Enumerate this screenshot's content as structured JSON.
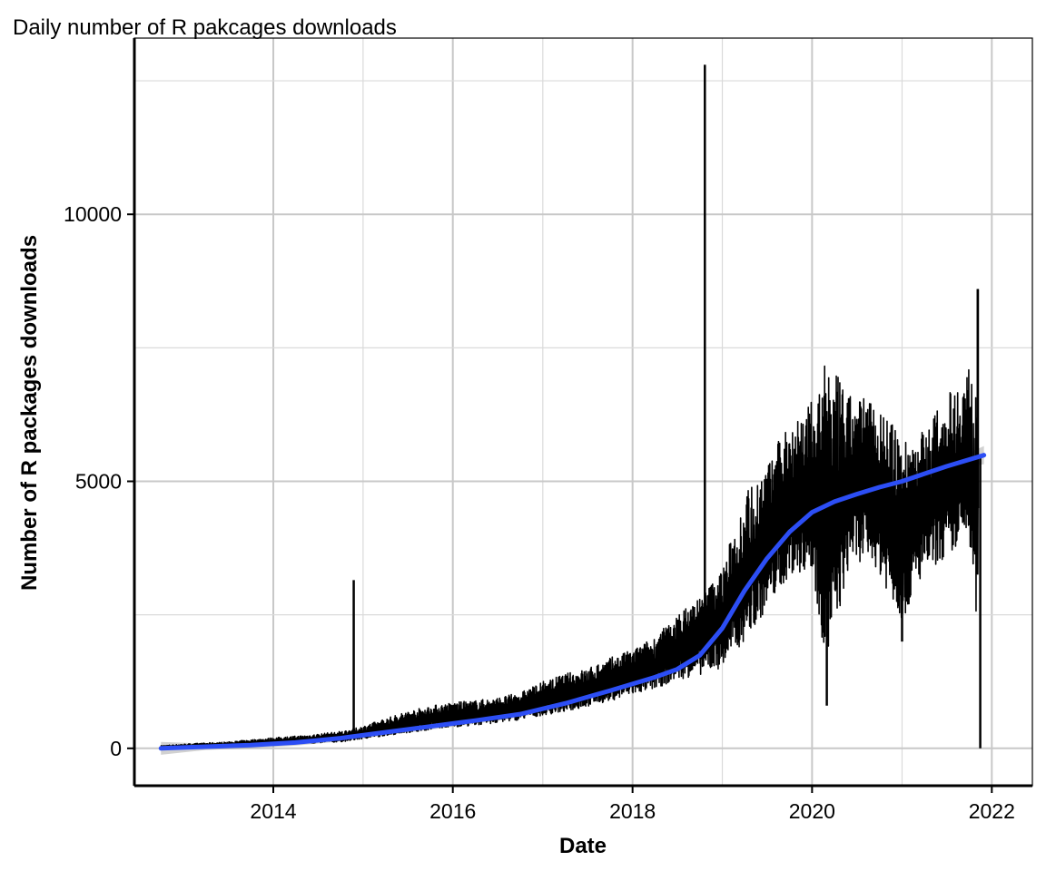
{
  "chart_data": {
    "type": "line",
    "title": "Daily number of R pakcages downloads",
    "xlabel": "Date",
    "ylabel": "Number of R packages downloads",
    "x_ticks": [
      "2014",
      "2016",
      "2018",
      "2020",
      "2022"
    ],
    "y_ticks": [
      "0",
      "5000",
      "10000"
    ],
    "xlim": [
      "2012-06-15",
      "2022-06-15"
    ],
    "ylim": [
      -700,
      13300
    ],
    "grid": true,
    "series": [
      {
        "kind": "daily_counts",
        "color": "#000000",
        "x": [
          "2012-10-01",
          "2013-01-01",
          "2013-04-01",
          "2013-07-01",
          "2013-10-01",
          "2014-01-01",
          "2014-04-01",
          "2014-07-01",
          "2014-10-01",
          "2014-11-24",
          "2015-01-01",
          "2015-04-01",
          "2015-07-01",
          "2015-10-01",
          "2016-01-01",
          "2016-04-01",
          "2016-07-01",
          "2016-10-01",
          "2017-01-01",
          "2017-04-01",
          "2017-07-01",
          "2017-10-01",
          "2018-01-01",
          "2018-04-01",
          "2018-07-01",
          "2018-10-22",
          "2019-01-01",
          "2019-04-01",
          "2019-07-01",
          "2019-10-01",
          "2020-01-01",
          "2020-03-01",
          "2020-06-01",
          "2020-09-01",
          "2021-01-01",
          "2021-04-01",
          "2021-07-01",
          "2021-10-01",
          "2021-11-05",
          "2021-11-15"
        ],
        "y": [
          0,
          20,
          40,
          70,
          90,
          110,
          140,
          170,
          220,
          3150,
          260,
          320,
          390,
          470,
          530,
          580,
          640,
          720,
          880,
          1000,
          1100,
          1250,
          1350,
          1500,
          1700,
          12800,
          1900,
          2700,
          3300,
          3800,
          4100,
          4800,
          4500,
          4700,
          4300,
          4500,
          4900,
          5200,
          8600,
          0
        ],
        "low": [
          0,
          0,
          10,
          20,
          40,
          50,
          70,
          80,
          100,
          150,
          150,
          200,
          250,
          300,
          350,
          380,
          420,
          480,
          550,
          600,
          700,
          800,
          900,
          1000,
          1150,
          1500,
          1300,
          1700,
          2300,
          2900,
          3000,
          800,
          3100,
          3200,
          2000,
          3000,
          3200,
          3500,
          4200,
          0
        ],
        "high": [
          50,
          80,
          100,
          120,
          160,
          200,
          230,
          270,
          320,
          3150,
          420,
          560,
          700,
          800,
          860,
          900,
          950,
          1050,
          1250,
          1400,
          1500,
          1700,
          1850,
          2100,
          2500,
          12800,
          3400,
          4800,
          5300,
          6200,
          6500,
          7300,
          6600,
          6600,
          5800,
          6000,
          6600,
          7200,
          8600,
          5500
        ]
      },
      {
        "kind": "smooth",
        "color": "#2c4ef5",
        "x": [
          "2012-10-01",
          "2013-04-01",
          "2013-10-01",
          "2014-04-01",
          "2014-10-01",
          "2015-04-01",
          "2015-10-01",
          "2016-04-01",
          "2016-10-01",
          "2017-04-01",
          "2017-10-01",
          "2018-04-01",
          "2018-07-01",
          "2018-10-01",
          "2019-01-01",
          "2019-04-01",
          "2019-07-01",
          "2019-10-01",
          "2020-01-01",
          "2020-04-01",
          "2020-07-01",
          "2020-10-01",
          "2021-01-01",
          "2021-04-01",
          "2021-07-01",
          "2021-11-30"
        ],
        "y": [
          0,
          30,
          60,
          110,
          190,
          300,
          410,
          520,
          640,
          840,
          1080,
          1330,
          1480,
          1740,
          2250,
          2950,
          3550,
          4050,
          4420,
          4620,
          4760,
          4890,
          5000,
          5140,
          5280,
          5490
        ]
      }
    ]
  }
}
